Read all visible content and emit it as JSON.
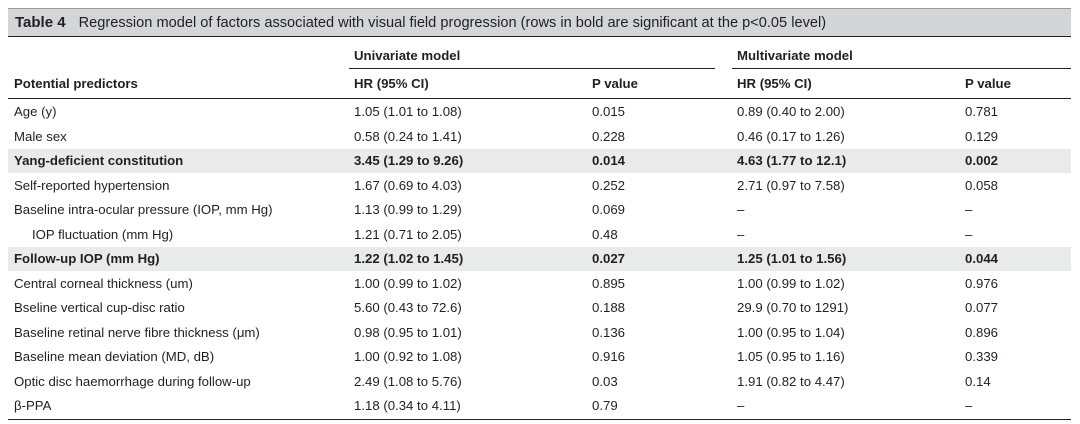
{
  "title": {
    "label": "Table 4",
    "text": "Regression model of factors associated with visual field progression (rows in bold are significant at the p<0.05 level)"
  },
  "header": {
    "group_univariate": "Univariate model",
    "group_multivariate": "Multivariate model",
    "col_predictors": "Potential predictors",
    "col_uni_hr": "HR (95% CI)",
    "col_uni_p": "P value",
    "col_multi_hr": "HR (95% CI)",
    "col_multi_p": "P value"
  },
  "rows": [
    {
      "predictor": "Age (y)",
      "uni_hr": "1.05 (1.01 to 1.08)",
      "uni_p": "0.015",
      "multi_hr": "0.89 (0.40 to 2.00)",
      "multi_p": "0.781",
      "bold": false,
      "indent": false
    },
    {
      "predictor": "Male sex",
      "uni_hr": "0.58 (0.24 to 1.41)",
      "uni_p": "0.228",
      "multi_hr": "0.46 (0.17 to 1.26)",
      "multi_p": "0.129",
      "bold": false,
      "indent": false
    },
    {
      "predictor": "Yang-deficient constitution",
      "uni_hr": "3.45 (1.29 to 9.26)",
      "uni_p": "0.014",
      "multi_hr": "4.63 (1.77 to 12.1)",
      "multi_p": "0.002",
      "bold": true,
      "indent": false
    },
    {
      "predictor": "Self-reported hypertension",
      "uni_hr": "1.67 (0.69 to 4.03)",
      "uni_p": "0.252",
      "multi_hr": "2.71 (0.97 to 7.58)",
      "multi_p": "0.058",
      "bold": false,
      "indent": false
    },
    {
      "predictor": "Baseline intra-ocular pressure (IOP, mm Hg)",
      "uni_hr": "1.13 (0.99 to 1.29)",
      "uni_p": "0.069",
      "multi_hr": "–",
      "multi_p": "–",
      "bold": false,
      "indent": false
    },
    {
      "predictor": "IOP fluctuation (mm Hg)",
      "uni_hr": "1.21 (0.71 to 2.05)",
      "uni_p": "0.48",
      "multi_hr": "–",
      "multi_p": "–",
      "bold": false,
      "indent": true
    },
    {
      "predictor": "Follow-up IOP (mm Hg)",
      "uni_hr": "1.22 (1.02 to 1.45)",
      "uni_p": "0.027",
      "multi_hr": "1.25 (1.01 to 1.56)",
      "multi_p": "0.044",
      "bold": true,
      "indent": false
    },
    {
      "predictor": "Central corneal thickness (um)",
      "uni_hr": "1.00 (0.99 to 1.02)",
      "uni_p": "0.895",
      "multi_hr": "1.00 (0.99 to 1.02)",
      "multi_p": "0.976",
      "bold": false,
      "indent": false
    },
    {
      "predictor": "Bseline vertical cup-disc ratio",
      "uni_hr": "5.60 (0.43 to 72.6)",
      "uni_p": "0.188",
      "multi_hr": "29.9 (0.70 to 1291)",
      "multi_p": "0.077",
      "bold": false,
      "indent": false
    },
    {
      "predictor": "Baseline retinal nerve fibre thickness (μm)",
      "uni_hr": "0.98 (0.95 to 1.01)",
      "uni_p": "0.136",
      "multi_hr": "1.00 (0.95 to 1.04)",
      "multi_p": "0.896",
      "bold": false,
      "indent": false
    },
    {
      "predictor": "Baseline mean deviation (MD, dB)",
      "uni_hr": "1.00 (0.92 to 1.08)",
      "uni_p": "0.916",
      "multi_hr": "1.05 (0.95 to 1.16)",
      "multi_p": "0.339",
      "bold": false,
      "indent": false
    },
    {
      "predictor": "Optic disc haemorrhage during follow-up",
      "uni_hr": "2.49 (1.08 to 5.76)",
      "uni_p": "0.03",
      "multi_hr": "1.91 (0.82 to 4.47)",
      "multi_p": "0.14",
      "bold": false,
      "indent": false
    },
    {
      "predictor": "β-PPA",
      "uni_hr": "1.18 (0.34 to 4.11)",
      "uni_p": "0.79",
      "multi_hr": "–",
      "multi_p": "–",
      "bold": false,
      "indent": false
    }
  ]
}
